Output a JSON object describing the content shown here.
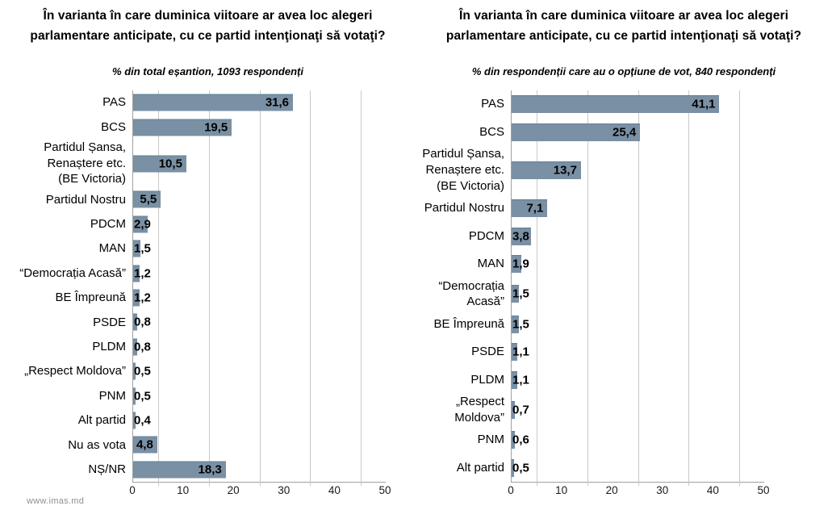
{
  "watermark": "www.imas.md",
  "colors": {
    "bar": "#7a90a4",
    "gridline": "#c9c9c9",
    "axis": "#a0a0a0"
  },
  "chart_data": [
    {
      "type": "bar",
      "orientation": "horizontal",
      "title": "În varianta în care duminica viitoare ar avea loc alegeri\nparlamentare anticipate, cu ce partid intenţionaţi să votaţi?",
      "subtitle": "% din total eșantion, 1093 respondenți",
      "categories": [
        "PAS",
        "BCS",
        "Partidul Șansa,\nRenaștere etc.\n(BE Victoria)",
        "Partidul Nostru",
        "PDCM",
        "MAN",
        "“Democrația Acasă”",
        "BE Împreună",
        "PSDE",
        "PLDM",
        "„Respect Moldova”",
        "PNM",
        "Alt partid",
        "Nu as vota",
        "NȘ/NR"
      ],
      "values": [
        31.6,
        19.5,
        10.5,
        5.5,
        2.9,
        1.5,
        1.2,
        1.2,
        0.8,
        0.8,
        0.5,
        0.5,
        0.4,
        4.8,
        18.3
      ],
      "xlim": [
        0,
        50
      ],
      "xticks": [
        0,
        10,
        20,
        30,
        40,
        50
      ],
      "gridlines": [
        5,
        15,
        25,
        35,
        45
      ],
      "grid": true,
      "legend": false,
      "xlabel": "",
      "ylabel": ""
    },
    {
      "type": "bar",
      "orientation": "horizontal",
      "title": "În varianta în care duminica viitoare ar avea loc alegeri\nparlamentare anticipate, cu ce partid intenţionaţi să votaţi?",
      "subtitle": "% din respondenții care au o opțiune de vot, 840 respondenți",
      "categories": [
        "PAS",
        "BCS",
        "Partidul Șansa,\nRenaștere etc.\n(BE Victoria)",
        "Partidul Nostru",
        "PDCM",
        "MAN",
        "“Democrația Acasă”",
        "BE Împreună",
        "PSDE",
        "PLDM",
        "„Respect Moldova”",
        "PNM",
        "Alt partid"
      ],
      "values": [
        41.1,
        25.4,
        13.7,
        7.1,
        3.8,
        1.9,
        1.5,
        1.5,
        1.1,
        1.1,
        0.7,
        0.6,
        0.5
      ],
      "xlim": [
        0,
        50
      ],
      "xticks": [
        0,
        10,
        20,
        30,
        40,
        50
      ],
      "gridlines": [
        5,
        15,
        25,
        35,
        45
      ],
      "grid": true,
      "legend": false,
      "xlabel": "",
      "ylabel": ""
    }
  ]
}
